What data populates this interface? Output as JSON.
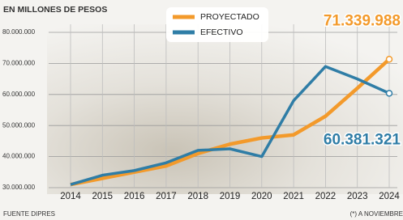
{
  "chart_data": {
    "type": "line",
    "subtitle": "EN MILLONES DE PESOS",
    "categories": [
      "2014",
      "2015",
      "2016",
      "2017",
      "2018",
      "2019",
      "2020",
      "2021",
      "2022",
      "2023",
      "2024"
    ],
    "series": [
      {
        "name": "PROYECTADO",
        "color": "#f39a2b",
        "values": [
          31000000,
          33000000,
          35000000,
          37000000,
          41000000,
          44000000,
          46000000,
          47000000,
          53000000,
          62000000,
          71339988
        ],
        "value_labels": [
          null,
          null,
          null,
          null,
          null,
          null,
          null,
          null,
          null,
          null,
          "71.339.988"
        ]
      },
      {
        "name": "EFECTIVO",
        "color": "#2f7da6",
        "values": [
          31000000,
          34000000,
          35500000,
          38000000,
          42000000,
          42500000,
          40000000,
          58000000,
          69000000,
          65000000,
          60381321
        ],
        "value_labels": [
          null,
          null,
          null,
          null,
          null,
          null,
          null,
          null,
          null,
          null,
          "60.381.321"
        ]
      }
    ],
    "ylim": [
      30000000,
      80000000
    ],
    "yticks": [
      {
        "value": 30000000,
        "label": "30.000.000"
      },
      {
        "value": 40000000,
        "label": "40.000.000"
      },
      {
        "value": 50000000,
        "label": "50.000.000"
      },
      {
        "value": 60000000,
        "label": "60.000.000"
      },
      {
        "value": 70000000,
        "label": "70.000.000"
      },
      {
        "value": 80000000,
        "label": "80.000.000"
      }
    ],
    "grid": true,
    "source": "FUENTE DIPRES",
    "footnote": "(*) A NOVIEMBRE"
  }
}
